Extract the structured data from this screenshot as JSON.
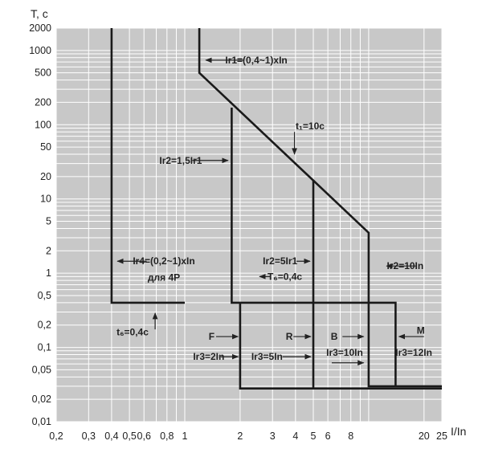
{
  "chart_data": {
    "type": "line",
    "title": "",
    "ylabel": "T, c",
    "xlabel": "I/In",
    "xscale": "log",
    "yscale": "log",
    "xlim": [
      0.2,
      25
    ],
    "ylim": [
      0.01,
      2000
    ],
    "grid": true,
    "x_ticks": [
      {
        "v": 0.2,
        "label": "0,2"
      },
      {
        "v": 0.3,
        "label": "0,3"
      },
      {
        "v": 0.4,
        "label": "0,4"
      },
      {
        "v": 0.5,
        "label": "0,5"
      },
      {
        "v": 0.6,
        "label": "0,6"
      },
      {
        "v": 0.8,
        "label": "0,8"
      },
      {
        "v": 1,
        "label": "1"
      },
      {
        "v": 2,
        "label": "2"
      },
      {
        "v": 3,
        "label": "3"
      },
      {
        "v": 4,
        "label": "4"
      },
      {
        "v": 5,
        "label": "5"
      },
      {
        "v": 6,
        "label": "6"
      },
      {
        "v": 8,
        "label": "8"
      },
      {
        "v": 20,
        "label": "20"
      },
      {
        "v": 25,
        "label": "25"
      }
    ],
    "y_ticks": [
      {
        "v": 2000,
        "label": "2000"
      },
      {
        "v": 1000,
        "label": "1000"
      },
      {
        "v": 500,
        "label": "500"
      },
      {
        "v": 200,
        "label": "200"
      },
      {
        "v": 100,
        "label": "100"
      },
      {
        "v": 50,
        "label": "50"
      },
      {
        "v": 20,
        "label": "20"
      },
      {
        "v": 10,
        "label": "10"
      },
      {
        "v": 5,
        "label": "5"
      },
      {
        "v": 2,
        "label": "2"
      },
      {
        "v": 1,
        "label": "1"
      },
      {
        "v": 0.5,
        "label": "0,5"
      },
      {
        "v": 0.2,
        "label": "0,2"
      },
      {
        "v": 0.1,
        "label": "0,1"
      },
      {
        "v": 0.05,
        "label": "0,05"
      },
      {
        "v": 0.02,
        "label": "0,02"
      },
      {
        "v": 0.01,
        "label": "0,01"
      }
    ],
    "series": [
      {
        "points": [
          [
            0.4,
            2000
          ],
          [
            0.4,
            0.4
          ],
          [
            1,
            0.4
          ]
        ]
      },
      {
        "points": [
          [
            1.2,
            2000
          ],
          [
            1.2,
            500
          ],
          [
            10,
            3.5
          ],
          [
            10,
            0.03
          ],
          [
            25,
            0.03
          ]
        ]
      },
      {
        "points": [
          [
            1.8,
            170
          ],
          [
            1.8,
            0.4
          ],
          [
            14,
            0.4
          ],
          [
            14,
            0.03
          ]
        ]
      },
      {
        "points": [
          [
            2,
            0.4
          ],
          [
            2,
            0.028
          ],
          [
            25,
            0.028
          ]
        ]
      },
      {
        "points": [
          [
            5,
            18
          ],
          [
            5,
            0.028
          ]
        ]
      }
    ],
    "annotations": [
      {
        "text": "Ir1=(0,4~1)xIn",
        "x": 2.45,
        "y": 740,
        "arrow": {
          "from": [
            2.1,
            740
          ],
          "to": [
            1.3,
            740
          ]
        }
      },
      {
        "text": "t₁=10c",
        "x": 4.8,
        "y": 96,
        "arrow": {
          "from": [
            3.95,
            80
          ],
          "to": [
            3.95,
            40
          ]
        }
      },
      {
        "text": "Ir2=1,5Ir1",
        "x": 0.95,
        "y": 33,
        "arrow": {
          "from": [
            1.1,
            33
          ],
          "to": [
            1.72,
            33
          ]
        }
      },
      {
        "text": "Ir4=(0,2~1)xIn",
        "x": 0.77,
        "y": 1.45,
        "arrow": {
          "from": [
            0.62,
            1.45
          ],
          "to": [
            0.43,
            1.45
          ]
        }
      },
      {
        "text": "для 4P",
        "x": 0.77,
        "y": 0.88
      },
      {
        "text": "Ir2=5Ir1",
        "x": 3.3,
        "y": 1.45,
        "arrow": {
          "from": [
            4.05,
            1.45
          ],
          "to": [
            4.8,
            1.45
          ]
        }
      },
      {
        "text": "T₆=0,4c",
        "x": 3.5,
        "y": 0.9,
        "arrow": {
          "from": [
            2.95,
            0.9
          ],
          "to": [
            2.55,
            0.9
          ]
        }
      },
      {
        "text": "Ir2=10In",
        "x": 15.8,
        "y": 1.25,
        "arrow": {
          "from": [
            18,
            1.25
          ],
          "to": [
            12.5,
            1.25
          ]
        }
      },
      {
        "text": "t₆=0,4c",
        "x": 0.52,
        "y": 0.16,
        "arrow": {
          "from": [
            0.69,
            0.175
          ],
          "to": [
            0.69,
            0.29
          ]
        }
      },
      {
        "text": "F",
        "x": 1.4,
        "y": 0.14,
        "arrow": {
          "from": [
            1.48,
            0.14
          ],
          "to": [
            1.95,
            0.14
          ]
        }
      },
      {
        "text": "R",
        "x": 3.7,
        "y": 0.14,
        "arrow": {
          "from": [
            3.9,
            0.14
          ],
          "to": [
            4.85,
            0.14
          ]
        }
      },
      {
        "text": "B",
        "x": 6.5,
        "y": 0.14,
        "arrow": {
          "from": [
            7.2,
            0.14
          ],
          "to": [
            9.4,
            0.14
          ]
        }
      },
      {
        "text": "M",
        "x": 19.2,
        "y": 0.17,
        "arrow": {
          "from": [
            20,
            0.14
          ],
          "to": [
            14.6,
            0.14
          ]
        }
      },
      {
        "text": "Ir3=2In",
        "x": 1.35,
        "y": 0.075,
        "arrow": {
          "from": [
            1.57,
            0.075
          ],
          "to": [
            1.95,
            0.075
          ]
        }
      },
      {
        "text": "Ir3=5In",
        "x": 2.8,
        "y": 0.075,
        "arrow": {
          "from": [
            3.4,
            0.075
          ],
          "to": [
            4.85,
            0.075
          ]
        }
      },
      {
        "text": "Ir3=10In",
        "x": 7.4,
        "y": 0.085,
        "arrow": {
          "from": [
            6.3,
            0.062
          ],
          "to": [
            9.4,
            0.062
          ]
        }
      },
      {
        "text": "Ir3=12In",
        "x": 17.6,
        "y": 0.085
      }
    ]
  }
}
